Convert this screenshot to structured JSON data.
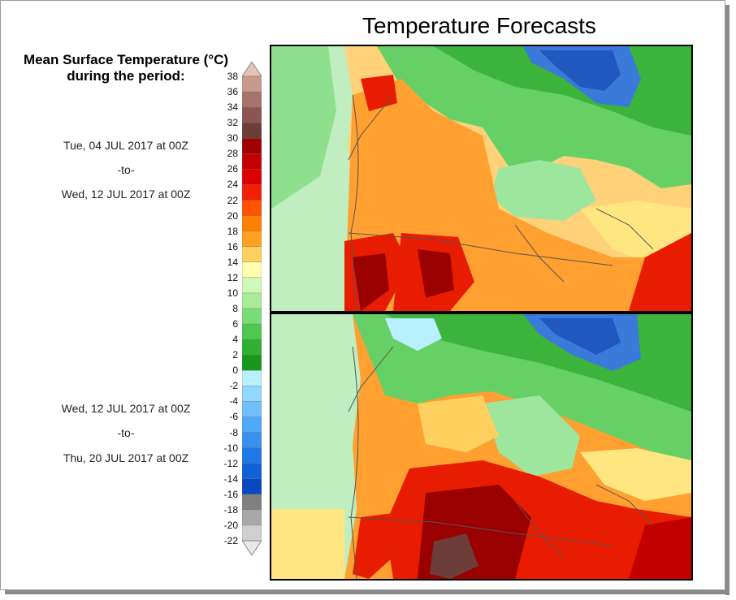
{
  "title": "Temperature Forecasts",
  "legend": {
    "title_line1": "Mean Surface Temperature (°C)",
    "title_line2": "during the period:",
    "ticks": [
      "38",
      "36",
      "34",
      "32",
      "30",
      "28",
      "26",
      "24",
      "22",
      "20",
      "18",
      "16",
      "14",
      "12",
      "10",
      "8",
      "6",
      "4",
      "2",
      "0",
      "-2",
      "-4",
      "-6",
      "-8",
      "-10",
      "-12",
      "-14",
      "-16",
      "-18",
      "-20",
      "-22"
    ],
    "bands": [
      "#e8c2b4",
      "#c99a8c",
      "#a8736a",
      "#8c5650",
      "#6d3d3a",
      "#a00000",
      "#c20000",
      "#dc0000",
      "#f22000",
      "#ff5200",
      "#ff8000",
      "#ffa020",
      "#ffd060",
      "#ffffb0",
      "#d0f8b8",
      "#a8ec98",
      "#78dc78",
      "#50c850",
      "#30b030",
      "#189818",
      "#b8f0ff",
      "#90d8ff",
      "#70c0ff",
      "#50a8f8",
      "#3890f0",
      "#2078e8",
      "#1060d8",
      "#0848c0",
      "#808080",
      "#a8a8a8",
      "#cfcfcf",
      "#e8e8e8"
    ]
  },
  "periods": [
    {
      "start": "Tue, 04 JUL 2017 at 00Z",
      "sep": "-to-",
      "end": "Wed, 12 JUL 2017 at 00Z"
    },
    {
      "start": "Wed, 12 JUL 2017 at 00Z",
      "sep": "-to-",
      "end": "Thu, 20 JUL 2017 at 00Z"
    }
  ],
  "colors": {
    "cold_blue": "#3a7ad8",
    "green": "#4cbc4c",
    "light_green": "#b8eeb0",
    "yellow": "#ffe680",
    "orange": "#ffa030",
    "red": "#e81c00",
    "dark_red": "#9a0000",
    "brown": "#6d3d3a"
  }
}
